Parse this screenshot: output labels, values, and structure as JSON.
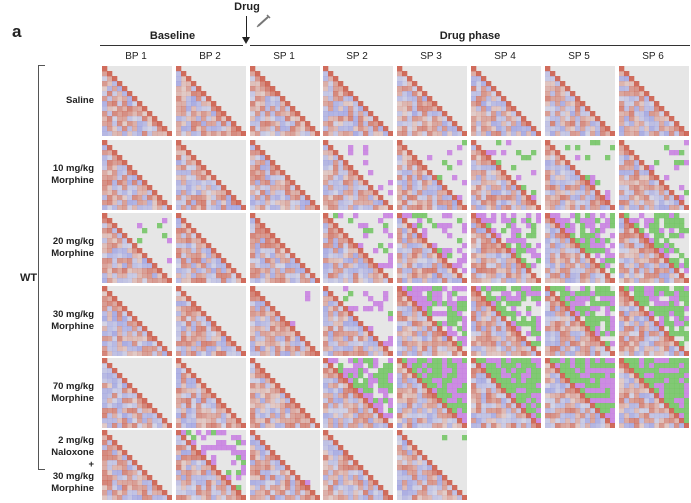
{
  "panel_letter": "a",
  "drug_marker": {
    "label": "Drug",
    "icon": "syringe-icon"
  },
  "groups": {
    "baseline": "Baseline",
    "drug_phase": "Drug phase"
  },
  "columns": [
    "BP 1",
    "BP 2",
    "SP 1",
    "SP 2",
    "SP 3",
    "SP 4",
    "SP 5",
    "SP 6"
  ],
  "genotype": "WT",
  "rows": [
    {
      "label_lines": [
        "Saline"
      ],
      "panels": 8,
      "green": [
        0,
        0,
        0,
        0,
        0,
        0,
        0,
        0
      ],
      "purple": [
        0,
        0,
        0,
        0,
        0,
        0,
        0,
        0
      ]
    },
    {
      "label_lines": [
        "10 mg/kg",
        "Morphine"
      ],
      "panels": 8,
      "green": [
        0,
        0,
        0,
        0,
        0.05,
        0.1,
        0.1,
        0.1
      ],
      "purple": [
        0,
        0,
        0,
        0.1,
        0.15,
        0.15,
        0.1,
        0.1
      ]
    },
    {
      "label_lines": [
        "20 mg/kg",
        "Morphine"
      ],
      "panels": 8,
      "green": [
        0.05,
        0,
        0,
        0.05,
        0.1,
        0.3,
        0.3,
        0.35
      ],
      "purple": [
        0.05,
        0,
        0,
        0.2,
        0.25,
        0.3,
        0.3,
        0.3
      ]
    },
    {
      "label_lines": [
        "30 mg/kg",
        "Morphine"
      ],
      "panels": 8,
      "green": [
        0,
        0,
        0,
        0.05,
        0.3,
        0.35,
        0.4,
        0.45
      ],
      "purple": [
        0,
        0,
        0.05,
        0.2,
        0.35,
        0.35,
        0.35,
        0.35
      ]
    },
    {
      "label_lines": [
        "70 mg/kg",
        "Morphine"
      ],
      "panels": 8,
      "green": [
        0,
        0,
        0,
        0.35,
        0.55,
        0.6,
        0.6,
        0.6
      ],
      "purple": [
        0,
        0,
        0,
        0.35,
        0.45,
        0.45,
        0.45,
        0.45
      ]
    },
    {
      "label_lines": [
        "2 mg/kg",
        "Naloxone",
        "+",
        "30 mg/kg",
        "Morphine"
      ],
      "panels": 5,
      "green": [
        0,
        0.15,
        0,
        0,
        0.02
      ],
      "purple": [
        0,
        0.3,
        0.02,
        0,
        0
      ]
    }
  ],
  "colors": {
    "background": "#e6e6e6",
    "red": "#c8432e",
    "blue": "#8a8ee0",
    "green": "#6fc35f",
    "purple": "#c77ce0"
  }
}
